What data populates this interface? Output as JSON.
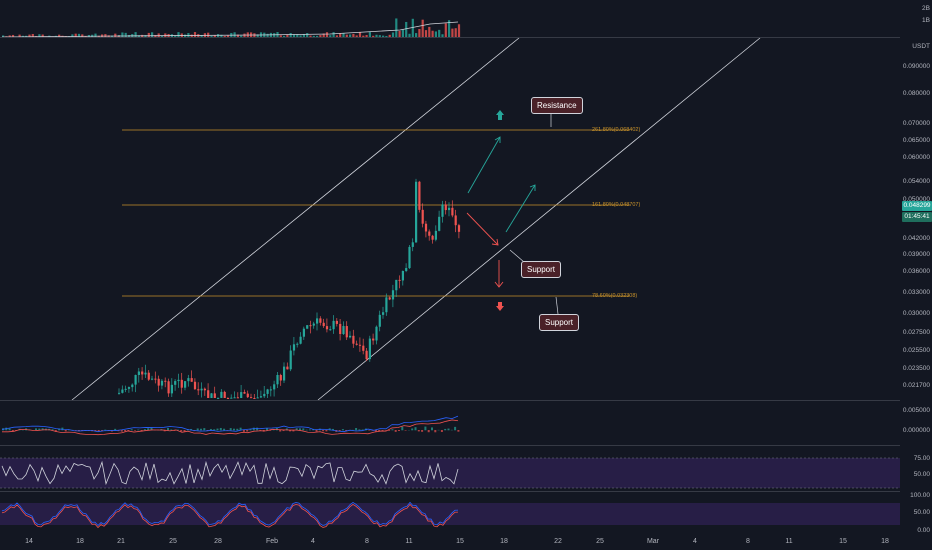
{
  "chart": {
    "currency": "USDT",
    "price_axis": [
      "0.090000",
      "0.080000",
      "0.070000",
      "0.065000",
      "0.060000",
      "0.054000",
      "0.050000",
      "0.046000",
      "0.042000",
      "0.039000",
      "0.036000",
      "0.033000",
      "0.030000",
      "0.027500",
      "0.025500",
      "0.023500",
      "0.021700"
    ],
    "current_price": "0.048299",
    "countdown": "01:45:41",
    "volume_axis": [
      "2B",
      "1B"
    ],
    "macd_axis": [
      "0.005000",
      "0.000000"
    ],
    "rsi_axis": [
      "75.00",
      "50.00"
    ],
    "stoch_axis": [
      "100.00",
      "50.00",
      "0.00"
    ],
    "date_axis": [
      "14",
      "18",
      "21",
      "25",
      "28",
      "Feb",
      "4",
      "8",
      "11",
      "15",
      "18",
      "22",
      "25",
      "Mar",
      "4",
      "8",
      "11",
      "15",
      "18"
    ],
    "fib_levels": [
      {
        "label": "261.80%(0.068402)",
        "color": "#c8922b"
      },
      {
        "label": "161.80%(0.048707)",
        "color": "#c8922b"
      },
      {
        "label": "78.60%(0.032308)",
        "color": "#c8922b"
      }
    ],
    "annotations": {
      "resistance": "Resistance",
      "support_1": "Support",
      "support_2": "Support"
    },
    "colors": {
      "up": "#26a69a",
      "down": "#ef5350",
      "bg": "#131722",
      "fib": "#c8922b",
      "channel": "#d1d4dc",
      "rsi_band": "#2a1f4a",
      "price_tag": "#26a69a"
    }
  }
}
